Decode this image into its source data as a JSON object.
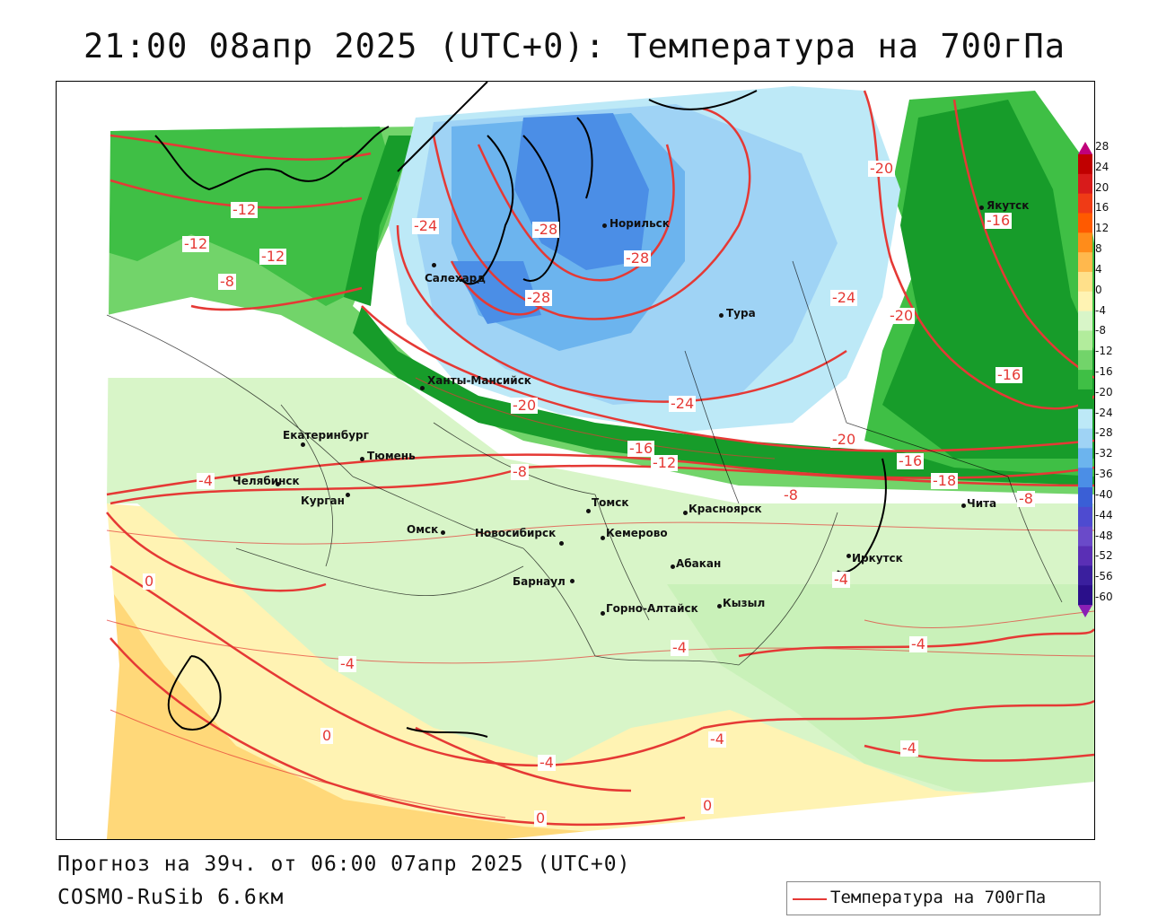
{
  "title": "21:00 08апр 2025 (UTC+0): Температура на 700гПа",
  "forecast": "Прогноз на 39ч. от 06:00 07апр 2025 (UTC+0)",
  "model": "COSMO-RuSib 6.6км",
  "legend_label": "Температура на 700гПа",
  "contour_color": "#e53935",
  "scale": {
    "labels": [
      "28",
      "24",
      "20",
      "16",
      "12",
      "8",
      "4",
      "0",
      "-4",
      "-8",
      "-12",
      "-16",
      "-20",
      "-24",
      "-28",
      "-32",
      "-36",
      "-40",
      "-44",
      "-48",
      "-52",
      "-56",
      "-60"
    ],
    "colors": [
      "#c00000",
      "#d81b1b",
      "#ef3b16",
      "#ff5a00",
      "#ff8c1a",
      "#ffb84d",
      "#ffe08a",
      "#fff3b3",
      "#d8f5c8",
      "#b2ec9c",
      "#72d46a",
      "#3fbf45",
      "#179c2a",
      "#bde9f7",
      "#9fd3f5",
      "#6cb4ee",
      "#4b8ee6",
      "#3a5fd6",
      "#4e4bd0",
      "#6a4ac9",
      "#5a2fb5",
      "#3a1f9e",
      "#2a0f8a"
    ]
  },
  "cities": [
    {
      "name": "Салехард"
    },
    {
      "name": "Норильск"
    },
    {
      "name": "Тура"
    },
    {
      "name": "Якутск"
    },
    {
      "name": "Ханты-Мансийск"
    },
    {
      "name": "Екатеринбург"
    },
    {
      "name": "Тюмень"
    },
    {
      "name": "Челябинск"
    },
    {
      "name": "Курган"
    },
    {
      "name": "Омск"
    },
    {
      "name": "Новосибирск"
    },
    {
      "name": "Томск"
    },
    {
      "name": "Кемерово"
    },
    {
      "name": "Красноярск"
    },
    {
      "name": "Барнаул"
    },
    {
      "name": "Абакан"
    },
    {
      "name": "Горно-Алтайск"
    },
    {
      "name": "Кызыл"
    },
    {
      "name": "Иркутск"
    },
    {
      "name": "Чита"
    }
  ],
  "contour_labels": [
    "-12",
    "-12",
    "-12",
    "-8",
    "-24",
    "-28",
    "-28",
    "-28",
    "-20",
    "-24",
    "-20",
    "-16",
    "-16",
    "-20",
    "-24",
    "-16",
    "-12",
    "-8",
    "-20",
    "-16",
    "-18",
    "-8",
    "-8",
    "-4",
    "0",
    "-4",
    "0",
    "-4",
    "-4",
    "0",
    "-4",
    "-4",
    "-4",
    "-4",
    "0"
  ]
}
